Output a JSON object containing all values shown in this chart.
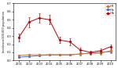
{
  "years": [
    2001,
    2002,
    2003,
    2004,
    2005,
    2006,
    2007,
    2008,
    2009,
    2010
  ],
  "Hib": [
    0.28,
    0.47,
    0.52,
    0.5,
    0.25,
    0.23,
    0.13,
    0.1,
    0.12,
    0.17
  ],
  "Hib_err": [
    0.05,
    0.06,
    0.06,
    0.06,
    0.04,
    0.04,
    0.03,
    0.02,
    0.03,
    0.03
  ],
  "Hie": [
    0.04,
    0.05,
    0.06,
    0.07,
    0.07,
    0.07,
    0.08,
    0.09,
    0.1,
    0.11
  ],
  "Hie_err": [
    0.01,
    0.01,
    0.01,
    0.01,
    0.01,
    0.01,
    0.02,
    0.02,
    0.02,
    0.02
  ],
  "Hif": [
    0.06,
    0.07,
    0.07,
    0.07,
    0.07,
    0.07,
    0.08,
    0.09,
    0.09,
    0.12
  ],
  "Hif_err": [
    0.01,
    0.01,
    0.01,
    0.01,
    0.01,
    0.01,
    0.02,
    0.02,
    0.02,
    0.03
  ],
  "color_Hif": "#E07020",
  "color_Hie": "#4472C4",
  "color_Hib": "#C00000",
  "ylabel": "Incidence/100,000 population",
  "ylim": [
    0,
    0.7
  ],
  "yticks": [
    0.0,
    0.1,
    0.2,
    0.3,
    0.4,
    0.5,
    0.6,
    0.7
  ],
  "background_color": "#ffffff"
}
